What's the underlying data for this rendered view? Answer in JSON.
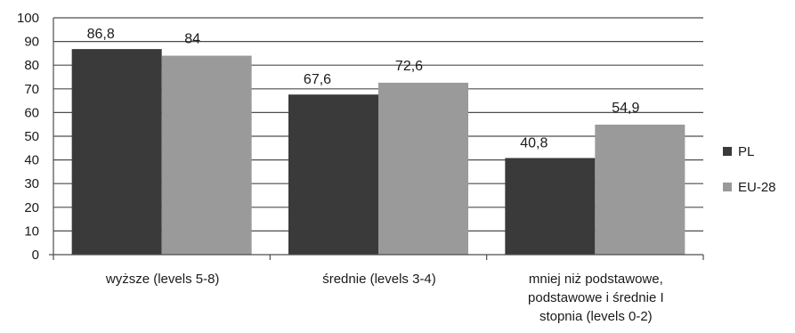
{
  "chart_data": {
    "type": "bar",
    "title": "",
    "xlabel": "",
    "ylabel": "",
    "ylim": [
      0,
      100
    ],
    "yticks": [
      0,
      10,
      20,
      30,
      40,
      50,
      60,
      70,
      80,
      90,
      100
    ],
    "grid": true,
    "legend_position": "right",
    "categories": [
      [
        "wyższe (levels 5-8)"
      ],
      [
        "średnie (levels 3-4)"
      ],
      [
        "mniej niż podstawowe,",
        "podstawowe i średnie I",
        "stopnia (levels 0-2)"
      ]
    ],
    "series": [
      {
        "name": "PL",
        "color": "#3a3a3a",
        "values": [
          86.8,
          67.6,
          40.8
        ],
        "labels": [
          "86,8",
          "67,6",
          "40,8"
        ]
      },
      {
        "name": "EU-28",
        "color": "#9a9a9a",
        "values": [
          84,
          72.6,
          54.9
        ],
        "labels": [
          "84",
          "72,6",
          "54,9"
        ]
      }
    ]
  }
}
